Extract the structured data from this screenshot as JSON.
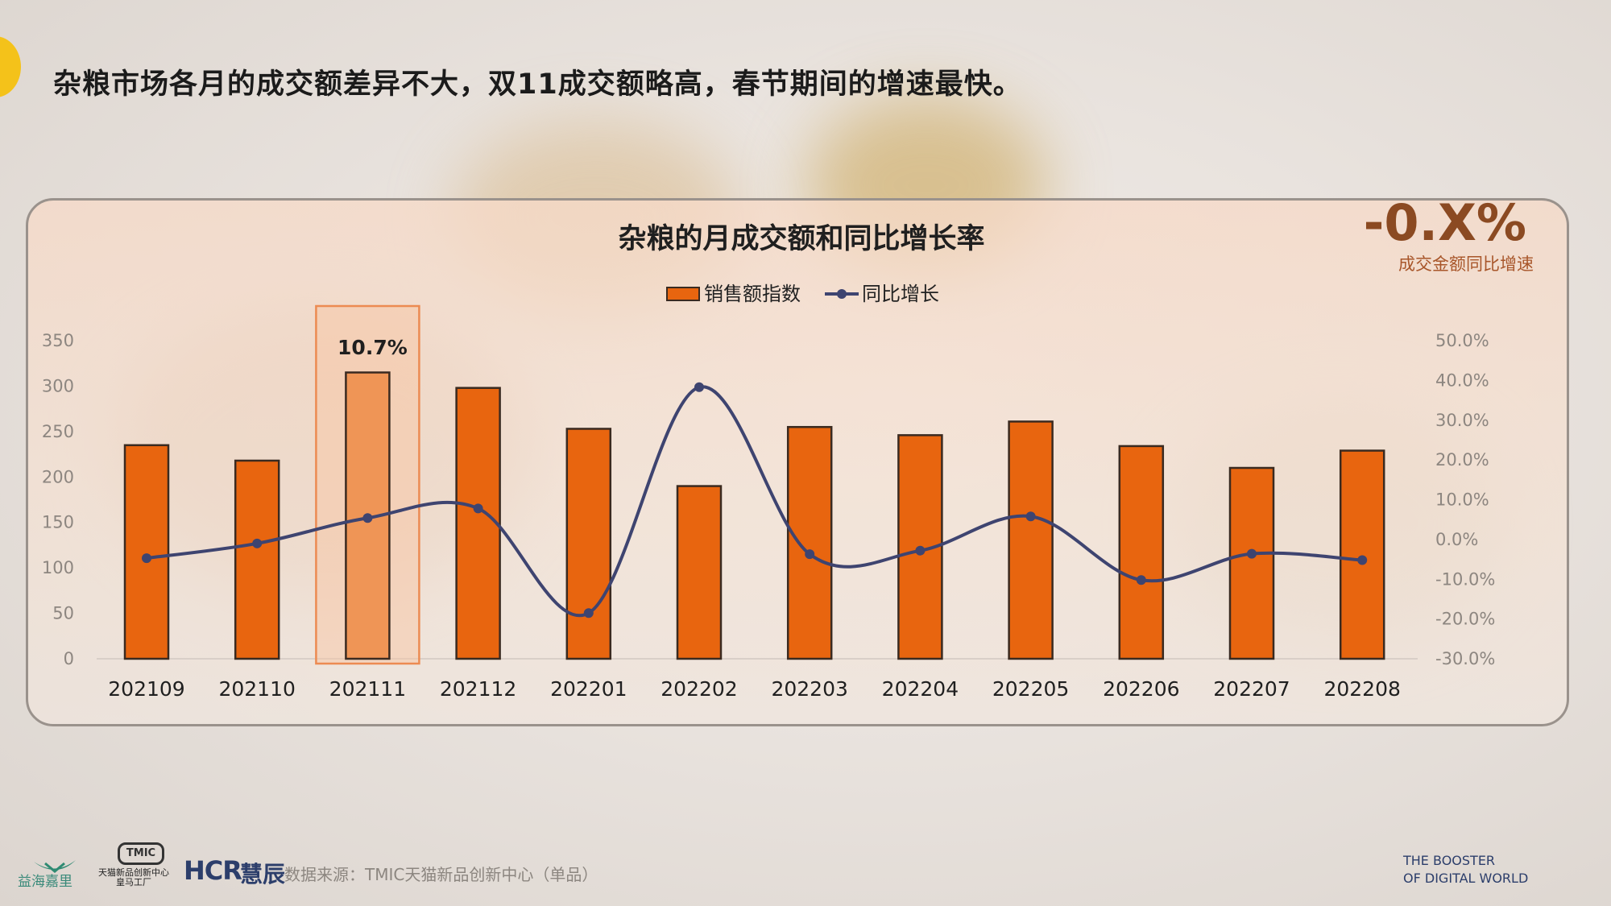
{
  "headline": "杂粮市场各月的成交额差异不大，双11成交额略高，春节期间的增速最快。",
  "kpi": {
    "value": "-0.X%",
    "label": "成交金额同比增速"
  },
  "chart_data": {
    "type": "bar",
    "title": "杂粮的月成交额和同比增长率",
    "categories": [
      "202109",
      "202110",
      "202111",
      "202112",
      "202201",
      "202202",
      "202203",
      "202204",
      "202205",
      "202206",
      "202207",
      "202208"
    ],
    "series": [
      {
        "name": "销售额指数",
        "type": "bar",
        "axis": "left",
        "color": "#e8650f",
        "values": [
          235,
          218,
          315,
          298,
          253,
          190,
          255,
          246,
          261,
          234,
          210,
          229
        ]
      },
      {
        "name": "同比增长",
        "type": "line",
        "axis": "right",
        "color": "#3e4470",
        "values": [
          -4.7,
          -1.0,
          5.4,
          7.8,
          -18.5,
          38.3,
          -3.7,
          -2.8,
          5.8,
          -10.2,
          -3.6,
          -5.2
        ]
      }
    ],
    "left_axis": {
      "ylim": [
        0,
        350
      ],
      "ticks": [
        "0",
        "50",
        "100",
        "150",
        "200",
        "250",
        "300",
        "350"
      ]
    },
    "right_axis": {
      "ylim": [
        -30,
        50
      ],
      "ticks": [
        "-30.0%",
        "-20.0%",
        "-10.0%",
        "0.0%",
        "10.0%",
        "20.0%",
        "30.0%",
        "40.0%",
        "50.0%"
      ]
    },
    "highlight": {
      "category": "202111",
      "label": "10.7%"
    },
    "legend": {
      "position": "top"
    }
  },
  "footer": {
    "logo_text": "益海嘉里",
    "tmic_badge": "TMIC",
    "tmic_text": "天猫新品创新中心",
    "tmic_sub": "皇马工厂",
    "hcr": "HCR",
    "hcr_cn": "慧辰",
    "source": "数据来源：TMIC天猫新品创新中心（单品）",
    "tagline_1": "THE BOOSTER",
    "tagline_2": "OF DIGITAL WORLD"
  },
  "colors": {
    "accent_yellow": "#f4c21a",
    "bar": "#e8650f",
    "line": "#3e4470"
  }
}
